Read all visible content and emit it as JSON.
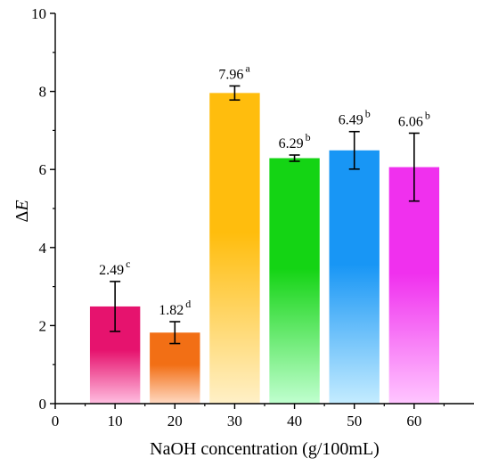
{
  "chart_data": {
    "type": "bar",
    "title": "",
    "xlabel": "NaOH concentration (g/100mL)",
    "ylabel_symbol": "Δ",
    "ylabel_var": "E",
    "x_ticks": [
      "0",
      "10",
      "20",
      "30",
      "40",
      "50",
      "60"
    ],
    "y_ticks": [
      "0",
      "2",
      "4",
      "6",
      "8",
      "10"
    ],
    "xlim": [
      0,
      70
    ],
    "ylim": [
      0,
      10
    ],
    "grid": false,
    "categories": [
      "10",
      "20",
      "30",
      "40",
      "50",
      "60"
    ],
    "x": [
      10,
      20,
      30,
      40,
      50,
      60
    ],
    "values": [
      2.49,
      1.82,
      7.96,
      6.29,
      6.49,
      6.06
    ],
    "errors": [
      0.64,
      0.28,
      0.18,
      0.08,
      0.48,
      0.87
    ],
    "value_labels": [
      "2.49",
      "1.82",
      "7.96",
      "6.29",
      "6.49",
      "6.06"
    ],
    "significance": [
      "c",
      "d",
      "a",
      "b",
      "b",
      "b"
    ],
    "colors_top": [
      "#e6136e",
      "#f26f15",
      "#ffbd0d",
      "#14d414",
      "#1896f5",
      "#f030ee"
    ],
    "colors_bottom": [
      "#ffbee0",
      "#ffd9c2",
      "#fff0c7",
      "#c0ffcf",
      "#c4ecff",
      "#ffc6ff"
    ]
  }
}
